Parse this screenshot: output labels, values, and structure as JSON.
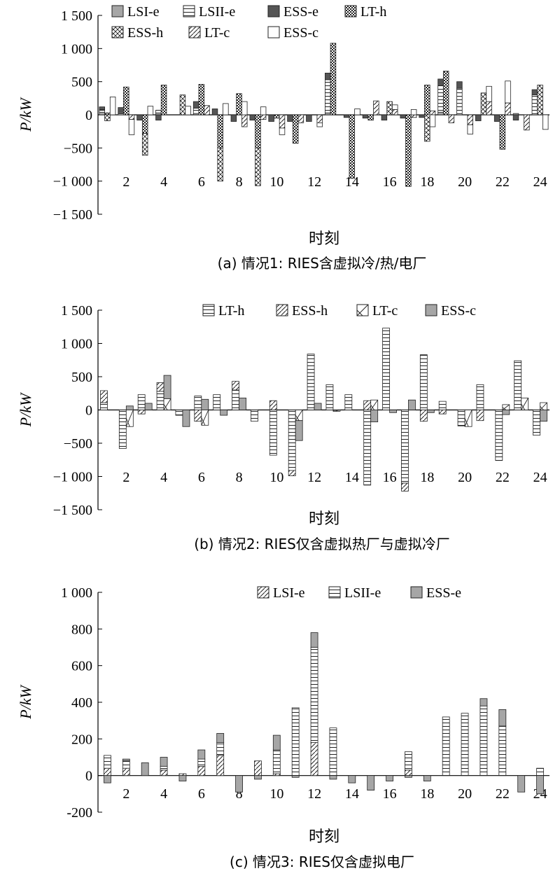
{
  "chart_data": [
    {
      "type": "bar",
      "caption": "(a)  情况1: RIES含虚拟冷/热/电厂",
      "xlabel": "时刻",
      "ylabel": "P/kW",
      "ylim": [
        -1500,
        1500
      ],
      "yticks": [
        -1500,
        -1000,
        -500,
        0,
        500,
        1000,
        1500
      ],
      "ytick_labels": [
        "−1 500",
        "−1 000",
        "−500",
        "0",
        "500",
        "1 000",
        "1 500"
      ],
      "xtick_labels": [
        "2",
        "4",
        "6",
        "8",
        "10",
        "12",
        "14",
        "16",
        "18",
        "20",
        "22",
        "24"
      ],
      "legend": "top",
      "categories": [
        1,
        2,
        3,
        4,
        5,
        6,
        7,
        8,
        9,
        10,
        11,
        12,
        13,
        14,
        15,
        16,
        17,
        18,
        19,
        20,
        21,
        22,
        23,
        24
      ],
      "groups": [
        {
          "stack": [
            "LSI-e",
            "LSII-e",
            "ESS-e"
          ]
        },
        {
          "stack": [
            "LT-h",
            "ESS-h"
          ]
        },
        {
          "stack": [
            "LT-c",
            "ESS-c"
          ]
        }
      ],
      "series": [
        {
          "name": "LSI-e",
          "pattern": "gray",
          "values": [
            40,
            0,
            0,
            30,
            0,
            20,
            0,
            0,
            0,
            0,
            0,
            0,
            30,
            0,
            0,
            0,
            0,
            0,
            40,
            0,
            0,
            0,
            20,
            0
          ]
        },
        {
          "name": "LSII-e",
          "pattern": "hlines",
          "values": [
            40,
            30,
            0,
            40,
            0,
            80,
            0,
            0,
            0,
            0,
            0,
            0,
            500,
            0,
            0,
            0,
            0,
            0,
            400,
            400,
            0,
            0,
            0,
            300
          ]
        },
        {
          "name": "ESS-e",
          "pattern": "dark",
          "values": [
            40,
            80,
            -80,
            -80,
            0,
            100,
            90,
            -100,
            -80,
            -100,
            -100,
            -100,
            100,
            -40,
            -50,
            -80,
            -50,
            -40,
            100,
            100,
            -90,
            -100,
            -80,
            80
          ]
        },
        {
          "name": "LT-h",
          "pattern": "checker",
          "values": [
            30,
            420,
            -280,
            450,
            0,
            460,
            -500,
            320,
            -500,
            -50,
            -430,
            0,
            1080,
            -960,
            -80,
            0,
            -1080,
            450,
            660,
            0,
            0,
            -520,
            0,
            0
          ]
        },
        {
          "name": "ESS-h",
          "pattern": "crosshatch",
          "values": [
            -90,
            0,
            -330,
            0,
            300,
            0,
            -500,
            0,
            -570,
            0,
            0,
            0,
            0,
            0,
            0,
            200,
            0,
            -400,
            0,
            0,
            330,
            0,
            0,
            450
          ]
        },
        {
          "name": "LT-c",
          "pattern": "diag",
          "values": [
            0,
            -70,
            0,
            0,
            0,
            140,
            0,
            -180,
            -70,
            -200,
            -120,
            -120,
            0,
            0,
            210,
            80,
            -40,
            60,
            -120,
            -150,
            200,
            180,
            -230,
            0
          ]
        },
        {
          "name": "ESS-c",
          "pattern": "white",
          "values": [
            270,
            -230,
            130,
            0,
            130,
            0,
            170,
            200,
            120,
            -100,
            0,
            -60,
            0,
            90,
            0,
            70,
            80,
            -180,
            0,
            -140,
            230,
            330,
            0,
            -220
          ]
        }
      ]
    },
    {
      "type": "bar",
      "caption": "(b) 情况2: RIES仅含虚拟热厂与虚拟冷厂",
      "xlabel": "时刻",
      "ylabel": "P/kW",
      "ylim": [
        -1500,
        1500
      ],
      "yticks": [
        -1500,
        -1000,
        -500,
        0,
        500,
        1000,
        1500
      ],
      "ytick_labels": [
        "−1 500",
        "−1 000",
        "−500",
        "0",
        "500",
        "1 000",
        "1 500"
      ],
      "xtick_labels": [
        "2",
        "4",
        "6",
        "8",
        "10",
        "12",
        "14",
        "16",
        "18",
        "20",
        "22",
        "24"
      ],
      "legend": "top",
      "categories": [
        1,
        2,
        3,
        4,
        5,
        6,
        7,
        8,
        9,
        10,
        11,
        12,
        13,
        14,
        15,
        16,
        17,
        18,
        19,
        20,
        21,
        22,
        23,
        24
      ],
      "groups": [
        {
          "stack": [
            "LT-h",
            "ESS-h"
          ]
        },
        {
          "stack": [
            "LT-c",
            "ESS-c"
          ]
        }
      ],
      "series": [
        {
          "name": "LT-h",
          "pattern": "hlines",
          "values": [
            110,
            -580,
            230,
            280,
            -80,
            210,
            230,
            300,
            -170,
            -680,
            -910,
            840,
            380,
            230,
            -1130,
            1230,
            -1100,
            830,
            130,
            -240,
            380,
            -760,
            740,
            -380
          ]
        },
        {
          "name": "ESS-h",
          "pattern": "diag",
          "values": [
            180,
            0,
            -60,
            130,
            0,
            -170,
            0,
            130,
            0,
            140,
            -80,
            0,
            0,
            0,
            140,
            0,
            -120,
            -170,
            -60,
            0,
            -160,
            0,
            0,
            0
          ]
        },
        {
          "name": "LT-c",
          "pattern": "xmark",
          "values": [
            0,
            -250,
            0,
            170,
            0,
            -230,
            0,
            0,
            0,
            0,
            -160,
            0,
            -20,
            0,
            150,
            0,
            0,
            0,
            0,
            -250,
            0,
            80,
            180,
            110
          ]
        },
        {
          "name": "ESS-c",
          "pattern": "gray",
          "values": [
            0,
            60,
            100,
            350,
            -250,
            160,
            -80,
            180,
            0,
            0,
            -300,
            100,
            0,
            0,
            -180,
            -40,
            150,
            -40,
            0,
            0,
            0,
            -70,
            0,
            -170
          ]
        }
      ]
    },
    {
      "type": "bar",
      "caption": "(c) 情况3: RIES仅含虚拟电厂",
      "xlabel": "时刻",
      "ylabel": "P/kW",
      "ylim": [
        -200,
        1000
      ],
      "yticks": [
        -200,
        0,
        200,
        400,
        600,
        800,
        1000
      ],
      "ytick_labels": [
        "-200",
        "0",
        "200",
        "400",
        "600",
        "800",
        "1 000"
      ],
      "xtick_labels": [
        "2",
        "4",
        "6",
        "8",
        "10",
        "12",
        "14",
        "16",
        "18",
        "20",
        "22",
        "24"
      ],
      "legend": "top",
      "categories": [
        1,
        2,
        3,
        4,
        5,
        6,
        7,
        8,
        9,
        10,
        11,
        12,
        13,
        14,
        15,
        16,
        17,
        18,
        19,
        20,
        21,
        22,
        23,
        24
      ],
      "groups": [
        {
          "stack": [
            "LSI-e",
            "LSII-e",
            "ESS-e"
          ]
        }
      ],
      "series": [
        {
          "name": "LSI-e",
          "pattern": "diag",
          "values": [
            40,
            40,
            0,
            30,
            10,
            50,
            110,
            0,
            80,
            10,
            0,
            180,
            0,
            0,
            0,
            0,
            30,
            0,
            0,
            0,
            0,
            0,
            0,
            0
          ]
        },
        {
          "name": "LSII-e",
          "pattern": "hlines",
          "values": [
            70,
            40,
            0,
            20,
            0,
            40,
            70,
            0,
            0,
            130,
            370,
            520,
            260,
            0,
            0,
            0,
            100,
            0,
            320,
            340,
            380,
            270,
            0,
            40
          ]
        },
        {
          "name": "ESS-e",
          "pattern": "gray",
          "values": [
            -40,
            10,
            70,
            50,
            -30,
            50,
            50,
            -90,
            -20,
            80,
            -10,
            80,
            -20,
            -40,
            -80,
            -30,
            -10,
            -30,
            0,
            0,
            40,
            90,
            -90,
            -100
          ]
        }
      ]
    }
  ]
}
